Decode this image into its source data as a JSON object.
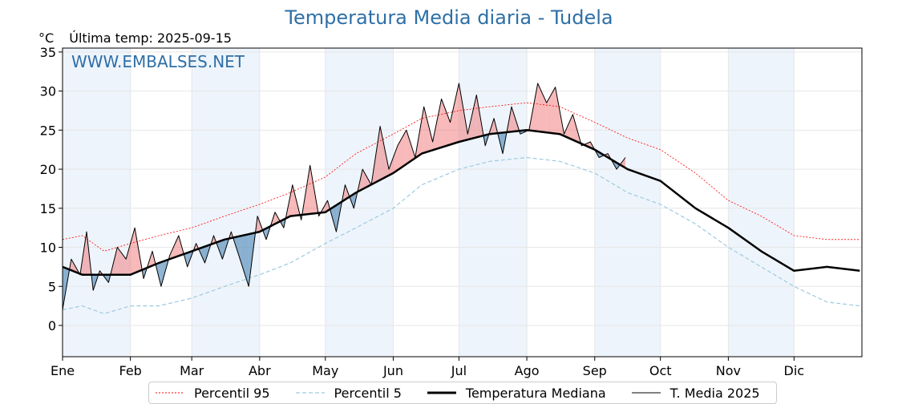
{
  "header": {
    "title": "Temperatura Media diaria - Tudela",
    "unit": "°C",
    "last_temp": "Última temp: 2025-09-15"
  },
  "watermark": "WWW.EMBALSES.NET",
  "colors": {
    "p95": "#ff0000",
    "p5": "#9ecae1",
    "median": "#000000",
    "current": "#000000",
    "above_fill": "#f08080",
    "below_fill": "#4682b4",
    "month_band": "#eef4fb",
    "title": "#2e6fa7"
  },
  "chart_data": {
    "type": "line",
    "title": "Temperatura Media diaria - Tudela",
    "ylabel": "°C",
    "ylim": [
      -4,
      35.5
    ],
    "xlim": [
      1,
      366
    ],
    "yticks": [
      0,
      5,
      10,
      15,
      20,
      25,
      30,
      35
    ],
    "grid": true,
    "legend_position": "bottom",
    "month_labels": [
      "Ene",
      "Feb",
      "Mar",
      "Abr",
      "May",
      "Jun",
      "Jul",
      "Ago",
      "Sep",
      "Oct",
      "Nov",
      "Dic"
    ],
    "month_start_days": [
      1,
      32,
      60,
      91,
      121,
      152,
      182,
      213,
      244,
      274,
      305,
      335
    ],
    "x_unit": "día del año",
    "series_p95": {
      "name": "Percentil 95",
      "days": [
        1,
        10,
        20,
        32,
        45,
        60,
        75,
        91,
        105,
        121,
        135,
        152,
        165,
        182,
        196,
        213,
        228,
        244,
        259,
        274,
        290,
        305,
        320,
        335,
        350,
        365
      ],
      "values": [
        11.0,
        11.5,
        9.5,
        10.5,
        11.5,
        12.5,
        14.0,
        15.5,
        17.0,
        19.0,
        22.0,
        24.5,
        26.5,
        27.5,
        28.0,
        28.5,
        28.0,
        26.0,
        24.0,
        22.5,
        19.5,
        16.0,
        14.0,
        11.5,
        11.0,
        11.0
      ]
    },
    "series_p5": {
      "name": "Percentil 5",
      "days": [
        1,
        10,
        20,
        32,
        45,
        60,
        75,
        91,
        105,
        121,
        135,
        152,
        165,
        182,
        196,
        213,
        228,
        244,
        259,
        274,
        290,
        305,
        320,
        335,
        350,
        365
      ],
      "values": [
        2.0,
        2.5,
        1.5,
        2.5,
        2.5,
        3.5,
        5.0,
        6.5,
        8.0,
        10.5,
        12.5,
        15.0,
        18.0,
        20.0,
        21.0,
        21.5,
        21.0,
        19.5,
        17.0,
        15.5,
        13.0,
        10.0,
        7.5,
        5.0,
        3.0,
        2.5
      ]
    },
    "series_median": {
      "name": "Temperatura Mediana",
      "days": [
        1,
        10,
        20,
        32,
        45,
        60,
        75,
        91,
        105,
        121,
        135,
        152,
        165,
        182,
        196,
        213,
        228,
        244,
        259,
        274,
        290,
        305,
        320,
        335,
        350,
        365
      ],
      "values": [
        7.5,
        6.5,
        6.5,
        6.5,
        8.0,
        9.5,
        11.0,
        12.0,
        14.0,
        14.5,
        17.0,
        19.5,
        22.0,
        23.5,
        24.5,
        25.0,
        24.5,
        22.5,
        20.0,
        18.5,
        15.0,
        12.5,
        9.5,
        7.0,
        7.5,
        7.0
      ]
    },
    "series_current": {
      "name": "T. Media 2025",
      "days": [
        1,
        5,
        9,
        12,
        15,
        18,
        22,
        26,
        30,
        34,
        38,
        42,
        46,
        50,
        54,
        58,
        62,
        66,
        70,
        74,
        78,
        82,
        86,
        90,
        94,
        98,
        102,
        106,
        110,
        114,
        118,
        122,
        126,
        130,
        134,
        138,
        142,
        146,
        150,
        154,
        158,
        162,
        166,
        170,
        174,
        178,
        182,
        186,
        190,
        194,
        198,
        202,
        206,
        210,
        214,
        218,
        222,
        226,
        230,
        234,
        238,
        242,
        246,
        250,
        254,
        258
      ],
      "values": [
        2.0,
        8.5,
        6.5,
        12.0,
        4.5,
        7.0,
        5.5,
        10.0,
        8.5,
        12.5,
        6.0,
        9.5,
        5.0,
        9.0,
        11.5,
        7.5,
        10.5,
        8.0,
        11.5,
        8.5,
        12.0,
        8.5,
        5.0,
        14.0,
        11.0,
        14.5,
        12.5,
        18.0,
        13.5,
        20.5,
        14.0,
        16.0,
        12.0,
        18.0,
        15.0,
        20.0,
        18.0,
        25.5,
        20.0,
        23.0,
        25.0,
        21.5,
        28.0,
        23.5,
        29.0,
        26.0,
        31.0,
        24.5,
        29.5,
        23.0,
        26.5,
        22.0,
        28.0,
        24.5,
        25.0,
        31.0,
        28.5,
        30.5,
        24.5,
        27.0,
        23.0,
        23.5,
        21.5,
        22.0,
        20.0,
        21.5
      ]
    },
    "legend": [
      "Percentil 95",
      "Percentil 5",
      "Temperatura Mediana",
      "T. Media 2025"
    ]
  }
}
